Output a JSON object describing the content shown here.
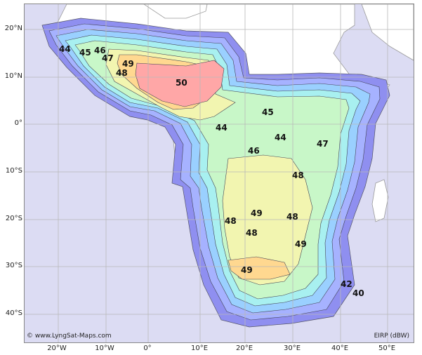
{
  "copyright": "© www.LyngSat-Maps.com",
  "unit": "EIRP (dBW)",
  "latitude_labels": [
    "20°N",
    "10°N",
    "0°",
    "10°S",
    "20°S",
    "30°S",
    "40°S"
  ],
  "longitude_labels": [
    "20°W",
    "10°W",
    "0°",
    "10°E",
    "20°E",
    "30°E",
    "40°E",
    "50°E"
  ],
  "contour_labels": [
    "44",
    "45",
    "46",
    "47",
    "49",
    "48",
    "50",
    "45",
    "44",
    "44",
    "46",
    "47",
    "48",
    "49",
    "48",
    "48",
    "48",
    "49",
    "49",
    "42",
    "40"
  ],
  "colors": {
    "outer": "#8f8ff0",
    "level_40": "#a9b4ff",
    "level_42": "#9ad0ff",
    "level_44": "#a8f0f0",
    "level_46": "#c8f7c8",
    "level_48": "#f2f5b0",
    "level_49": "#ffd890",
    "level_50": "#ffa7a7",
    "grid": "#b8b8b8",
    "land": "#ffffff",
    "ocean": "#d8d8f0"
  }
}
